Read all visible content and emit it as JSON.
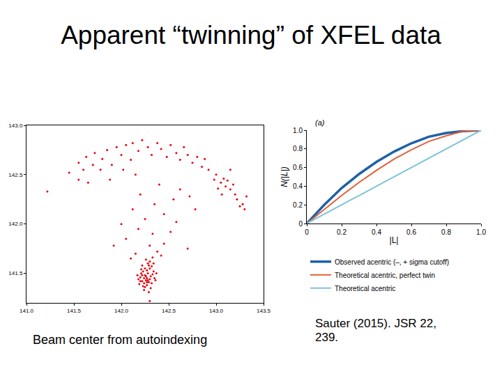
{
  "title": "Apparent “twinning” of XFEL data",
  "captions": [
    "Beam center from autoindexing",
    "Sauter (2015). JSR 22, 239."
  ],
  "chart_data": [
    {
      "type": "scatter",
      "color": "#e8000b",
      "marker": "circle",
      "grid": false,
      "x": [
        142.27,
        142.25,
        142.3,
        142.22,
        142.28,
        142.24,
        142.31,
        142.26,
        142.2,
        142.29,
        142.23,
        142.33,
        142.27,
        142.21,
        142.35,
        142.25,
        142.3,
        142.18,
        142.32,
        142.26,
        142.24,
        142.28,
        142.22,
        142.34,
        142.29,
        142.19,
        142.31,
        142.27,
        142.23,
        142.36,
        142.25,
        142.32,
        142.21,
        142.28,
        142.3,
        142.26,
        142.34,
        142.17,
        142.24,
        142.29,
        142.33,
        142.22,
        142.37,
        142.27,
        142.2,
        142.15,
        142.38,
        142.42,
        142.1,
        142.3,
        142.45,
        142.05,
        142.33,
        142.18,
        142.52,
        142.25,
        142.45,
        142.58,
        142.12,
        142.35,
        142.55,
        142.0,
        142.62,
        142.2,
        142.4,
        142.72,
        142.3,
        141.92,
        142.7,
        142.78,
        141.55,
        141.6,
        141.63,
        141.7,
        141.72,
        141.78,
        141.8,
        141.85,
        141.9,
        141.95,
        142.0,
        142.05,
        142.1,
        142.12,
        142.18,
        142.22,
        142.28,
        142.32,
        142.38,
        142.42,
        142.48,
        142.52,
        142.58,
        142.62,
        142.66,
        142.7,
        142.75,
        142.8,
        142.85,
        142.88,
        142.92,
        141.45,
        141.65,
        141.88,
        141.55,
        141.22,
        142.02,
        142.15,
        143.0,
        143.05,
        143.08,
        143.1,
        143.12,
        143.15,
        143.02,
        143.18,
        143.2,
        143.22,
        143.25,
        143.28,
        143.3,
        143.06,
        142.98,
        143.15,
        143.32
      ],
      "y": [
        141.45,
        141.48,
        141.44,
        141.42,
        141.5,
        141.4,
        141.47,
        141.43,
        141.46,
        141.41,
        141.52,
        141.49,
        141.38,
        141.5,
        141.45,
        141.36,
        141.55,
        141.44,
        141.4,
        141.47,
        141.45,
        141.43,
        141.48,
        141.52,
        141.58,
        141.39,
        141.35,
        141.53,
        141.37,
        141.43,
        141.55,
        141.57,
        141.54,
        141.6,
        141.62,
        141.64,
        141.6,
        141.48,
        141.33,
        141.31,
        141.66,
        141.58,
        141.5,
        141.41,
        141.42,
        141.7,
        141.72,
        141.68,
        141.65,
        141.78,
        141.8,
        141.85,
        141.9,
        141.95,
        141.92,
        142.05,
        142.1,
        142.02,
        142.15,
        142.2,
        142.25,
        142.0,
        142.35,
        142.3,
        142.4,
        142.28,
        141.22,
        141.78,
        141.75,
        142.15,
        142.62,
        142.55,
        142.68,
        142.6,
        142.72,
        142.55,
        142.66,
        142.75,
        142.6,
        142.78,
        142.7,
        142.8,
        142.65,
        142.82,
        142.74,
        142.85,
        142.78,
        142.7,
        142.82,
        142.76,
        142.68,
        142.8,
        142.72,
        142.65,
        142.78,
        142.7,
        142.62,
        142.68,
        142.58,
        142.66,
        142.55,
        142.52,
        142.42,
        142.45,
        142.45,
        142.33,
        142.55,
        142.5,
        142.5,
        142.42,
        142.46,
        142.38,
        142.44,
        142.35,
        142.36,
        142.4,
        142.3,
        142.25,
        142.18,
        142.2,
        142.15,
        142.3,
        142.45,
        142.55,
        142.28
      ],
      "xlim": [
        141.0,
        143.5
      ],
      "xticks": [
        {
          "value": 141,
          "label": "141.0"
        },
        141.5,
        {
          "value": 142,
          "label": "142.0"
        },
        142.5,
        {
          "value": 143,
          "label": "143.0"
        },
        143.5
      ],
      "ylim": [
        141.2,
        143.0
      ],
      "yticks": [
        141.5,
        {
          "value": 142,
          "label": "142.0"
        },
        142.5,
        {
          "value": 143,
          "label": "143.0"
        }
      ]
    },
    {
      "type": "line",
      "annotations": [
        "(a)"
      ],
      "xlabel": "|L|",
      "ylabel": "N(|L|)",
      "grid": false,
      "legend": "bottom",
      "x": [
        0,
        0.1,
        0.2,
        0.3,
        0.4,
        0.5,
        0.6,
        0.7,
        0.8,
        0.9,
        1.0
      ],
      "series": [
        {
          "name": "Observed acentric (–, + sigma cutoff)",
          "color": "#1f5fa8",
          "line_style": "solid",
          "values": [
            0,
            0.2,
            0.38,
            0.53,
            0.66,
            0.77,
            0.86,
            0.93,
            0.97,
            0.99,
            1.0
          ]
        },
        {
          "name": "Theoretical acentric, perfect twin",
          "color": "#e0603a",
          "line_style": "solid",
          "values": [
            0,
            0.15,
            0.3,
            0.44,
            0.57,
            0.69,
            0.79,
            0.88,
            0.94,
            0.99,
            1.0
          ]
        },
        {
          "name": "Theoretical acentric",
          "color": "#7ec4d8",
          "line_style": "solid",
          "values": [
            0,
            0.1,
            0.2,
            0.3,
            0.4,
            0.5,
            0.6,
            0.7,
            0.8,
            0.9,
            1.0
          ]
        }
      ],
      "xlim": [
        0,
        1.0
      ],
      "xticks": [
        0,
        0.2,
        0.4,
        0.6,
        0.8,
        {
          "value": 1,
          "label": "1.0"
        }
      ],
      "ylim": [
        0,
        1.0
      ],
      "yticks": [
        0,
        0.2,
        0.4,
        0.6,
        0.8,
        {
          "value": 1,
          "label": "1.0"
        }
      ]
    }
  ]
}
